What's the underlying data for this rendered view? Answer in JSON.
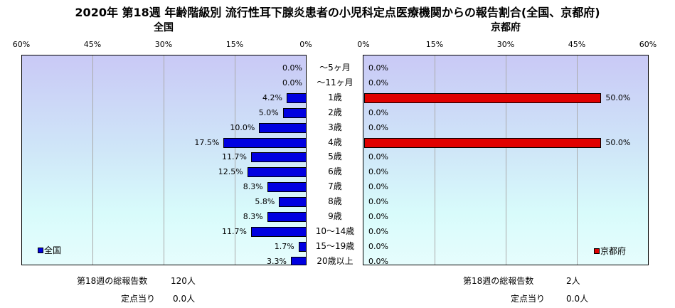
{
  "title": "2020年 第18週 年齢階級別 流行性耳下腺炎患者の小児科定点医療機関からの報告割合(全国、京都府)",
  "chart_data": [
    {
      "type": "bar",
      "orientation": "horizontal",
      "direction": "right-to-left",
      "title": "全国",
      "series": [
        {
          "name": "全国",
          "values": [
            0.0,
            0.0,
            4.2,
            5.0,
            10.0,
            17.5,
            11.7,
            12.5,
            8.3,
            5.8,
            8.3,
            11.7,
            1.7,
            3.3
          ],
          "color": "#0000e0"
        }
      ],
      "value_labels": [
        "0.0%",
        "0.0%",
        "4.2%",
        "5.0%",
        "10.0%",
        "17.5%",
        "11.7%",
        "12.5%",
        "8.3%",
        "5.8%",
        "8.3%",
        "11.7%",
        "1.7%",
        "3.3%"
      ],
      "xlim": [
        0,
        60
      ],
      "xticks": [
        "60%",
        "45%",
        "30%",
        "15%",
        "0%"
      ],
      "legend": "bottom-left"
    },
    {
      "type": "bar",
      "orientation": "horizontal",
      "direction": "left-to-right",
      "title": "京都府",
      "series": [
        {
          "name": "京都府",
          "values": [
            0.0,
            0.0,
            50.0,
            0.0,
            0.0,
            50.0,
            0.0,
            0.0,
            0.0,
            0.0,
            0.0,
            0.0,
            0.0,
            0.0
          ],
          "color": "#e00000"
        }
      ],
      "value_labels": [
        "0.0%",
        "0.0%",
        "50.0%",
        "0.0%",
        "0.0%",
        "50.0%",
        "0.0%",
        "0.0%",
        "0.0%",
        "0.0%",
        "0.0%",
        "0.0%",
        "0.0%",
        "0.0%"
      ],
      "xlim": [
        0,
        60
      ],
      "xticks": [
        "0%",
        "15%",
        "30%",
        "45%",
        "60%"
      ],
      "legend": "bottom-right"
    }
  ],
  "categories": [
    "～5ヶ月",
    "～11ヶ月",
    "1歳",
    "2歳",
    "3歳",
    "4歳",
    "5歳",
    "6歳",
    "7歳",
    "8歳",
    "9歳",
    "10～14歳",
    "15～19歳",
    "20歳以上"
  ],
  "footer": {
    "left": {
      "total_label": "第18週の総報告数",
      "total_value": "120人",
      "per_label": "定点当り",
      "per_value": "0.0人"
    },
    "right": {
      "total_label": "第18週の総報告数",
      "total_value": "2人",
      "per_label": "定点当り",
      "per_value": "0.0人"
    }
  }
}
